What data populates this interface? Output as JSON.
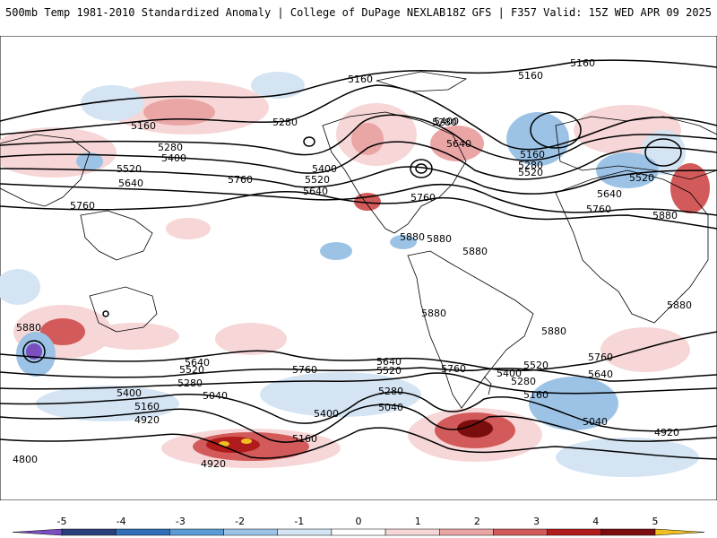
{
  "header": {
    "left": "500mb Temp 1981-2010 Standardized Anomaly | College of DuPage NEXLAB",
    "right": "18Z GFS | F357 Valid: 15Z WED APR 09 2025"
  },
  "map": {
    "contour_labels": [
      "5160",
      "5160",
      "5160",
      "5280",
      "5280",
      "5400",
      "5400",
      "5520",
      "5640",
      "5760",
      "5160",
      "5280",
      "5400",
      "5520",
      "5640",
      "5160",
      "5280",
      "5400",
      "5520",
      "5640",
      "5760",
      "5160",
      "5280",
      "5400",
      "5520",
      "5640",
      "5760",
      "5880",
      "5760",
      "5880",
      "5880",
      "5880",
      "5880",
      "5880",
      "5880",
      "5880",
      "5640",
      "5520",
      "5400",
      "5280",
      "5160",
      "5040",
      "4920",
      "4800",
      "5760",
      "5640",
      "5520",
      "5400",
      "5280",
      "5160",
      "5040",
      "4920",
      "5760",
      "5640",
      "5520",
      "5400",
      "5280",
      "5160",
      "5040",
      "4920",
      "5880",
      "5760"
    ]
  },
  "colorbar": {
    "ticks": [
      "-5",
      "-4",
      "-3",
      "-2",
      "-1",
      "0",
      "1",
      "2",
      "3",
      "4",
      "5"
    ],
    "colors": [
      "#7b4fbf",
      "#2a3f7a",
      "#2f6fb8",
      "#5a9bd5",
      "#9cc3e6",
      "#d4e4f3",
      "#ffffff",
      "#f6d6d6",
      "#eaa5a5",
      "#d35a5a",
      "#b01c1c",
      "#7a0d0d",
      "#f0c020"
    ]
  }
}
